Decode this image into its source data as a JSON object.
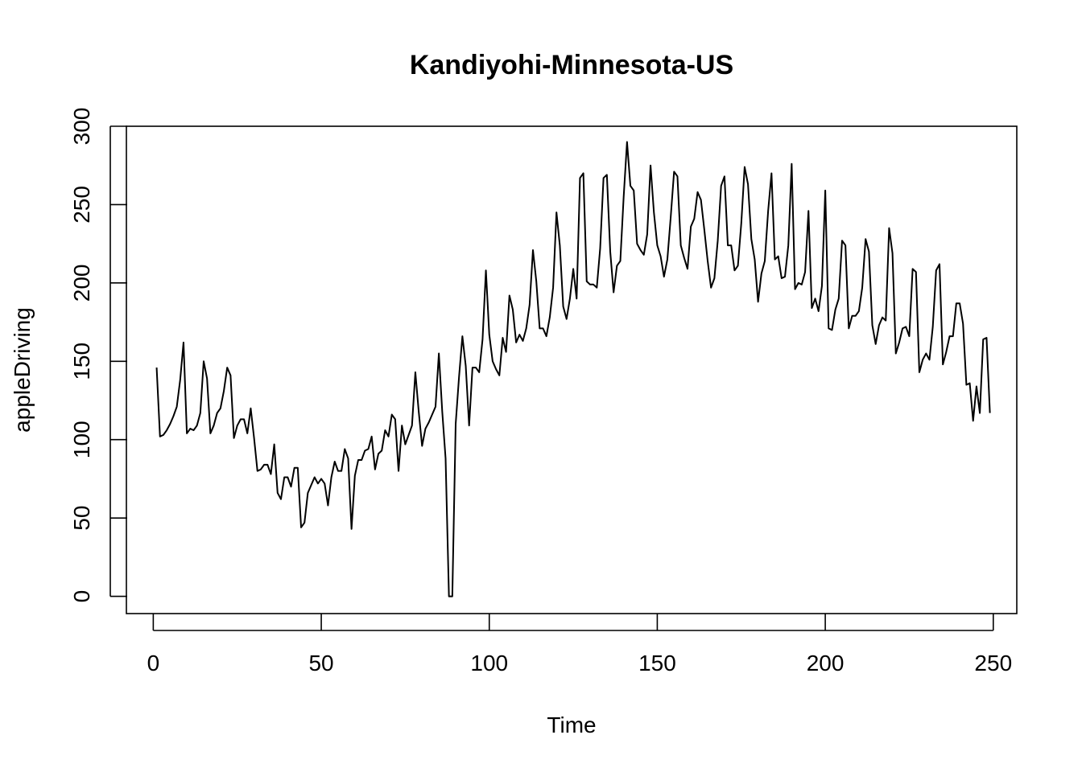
{
  "chart_data": {
    "type": "line",
    "title": "Kandiyohi-Minnesota-US",
    "xlabel": "Time",
    "ylabel": "appleDriving",
    "xlim": [
      -8,
      257
    ],
    "ylim": [
      -11,
      300
    ],
    "x_ticks": [
      0,
      50,
      100,
      150,
      200,
      250
    ],
    "y_ticks": [
      0,
      50,
      100,
      150,
      200,
      250,
      300
    ],
    "grid": false,
    "legend": "none",
    "series": [
      {
        "color": "#000000",
        "x_start": 1,
        "values": [
          146,
          102,
          103,
          106,
          110,
          115,
          121,
          138,
          162,
          104,
          107,
          106,
          109,
          117,
          150,
          139,
          104,
          109,
          117,
          120,
          131,
          146,
          141,
          101,
          109,
          113,
          113,
          104,
          120,
          101,
          80,
          81,
          84,
          84,
          78,
          97,
          66,
          62,
          76,
          76,
          70,
          82,
          82,
          44,
          47,
          66,
          71,
          76,
          72,
          75,
          72,
          58,
          76,
          86,
          80,
          80,
          94,
          88,
          43,
          77,
          87,
          87,
          93,
          94,
          102,
          81,
          91,
          93,
          106,
          102,
          116,
          113,
          80,
          109,
          97,
          103,
          109,
          143,
          118,
          96,
          107,
          111,
          116,
          121,
          155,
          118,
          88,
          0,
          0,
          110,
          140,
          166,
          147,
          109,
          146,
          146,
          143,
          164,
          208,
          167,
          150,
          145,
          141,
          165,
          156,
          192,
          183,
          162,
          167,
          163,
          171,
          186,
          221,
          201,
          171,
          171,
          166,
          178,
          197,
          245,
          224,
          185,
          177,
          190,
          209,
          190,
          267,
          270,
          201,
          199,
          199,
          197,
          222,
          267,
          269,
          220,
          194,
          211,
          214,
          255,
          290,
          262,
          259,
          225,
          221,
          218,
          231,
          275,
          245,
          224,
          217,
          204,
          215,
          242,
          271,
          268,
          224,
          216,
          209,
          236,
          241,
          258,
          253,
          234,
          214,
          197,
          203,
          227,
          262,
          268,
          224,
          224,
          208,
          211,
          238,
          274,
          263,
          228,
          215,
          188,
          206,
          214,
          246,
          270,
          215,
          217,
          203,
          204,
          224,
          276,
          196,
          200,
          199,
          207,
          246,
          184,
          190,
          182,
          198,
          259,
          171,
          170,
          183,
          190,
          227,
          224,
          171,
          179,
          179,
          182,
          197,
          228,
          220,
          173,
          161,
          173,
          178,
          176,
          235,
          219,
          155,
          162,
          171,
          172,
          166,
          209,
          207,
          143,
          151,
          155,
          151,
          172,
          208,
          212,
          148,
          156,
          166,
          166,
          187,
          187,
          174,
          135,
          136,
          112,
          134,
          117,
          164,
          165,
          117
        ]
      }
    ]
  }
}
